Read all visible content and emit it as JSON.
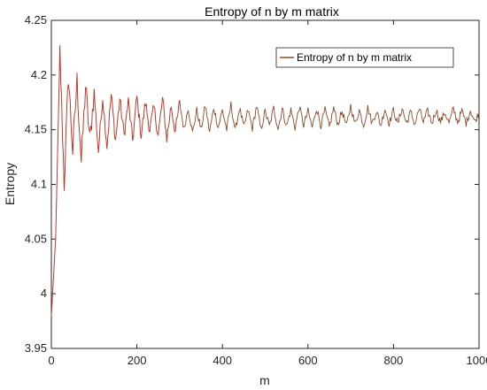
{
  "chart_data": {
    "type": "line",
    "title": "Entropy of n by m matrix",
    "xlabel": "m",
    "ylabel": "Entropy",
    "xlim": [
      0,
      1000
    ],
    "ylim": [
      3.95,
      4.25
    ],
    "xticks": [
      0,
      200,
      400,
      600,
      800,
      1000
    ],
    "xtick_labels": [
      "0",
      "200",
      "400",
      "600",
      "800",
      "1000"
    ],
    "yticks": [
      3.95,
      4.0,
      4.05,
      4.1,
      4.15,
      4.2,
      4.25
    ],
    "ytick_labels": [
      "3.95",
      "4",
      "4.05",
      "4.1",
      "4.15",
      "4.2",
      "4.25"
    ],
    "grid": false,
    "legend_position": "top-right",
    "series": [
      {
        "name": "Entropy of n by m matrix",
        "color": "#8b4a2b",
        "early_color": "#ee2222",
        "values": [
          3.98,
          4.05,
          4.222,
          4.1,
          4.2,
          4.13,
          4.195,
          4.12,
          4.19,
          4.14,
          4.185,
          4.13,
          4.18,
          4.135,
          4.182,
          4.14,
          4.178,
          4.145,
          4.176,
          4.14,
          4.18,
          4.145,
          4.175,
          4.15,
          4.17,
          4.145,
          4.178,
          4.142,
          4.172,
          4.148,
          4.175,
          4.15,
          4.17,
          4.147,
          4.168,
          4.15,
          4.172,
          4.148,
          4.17,
          4.152,
          4.168,
          4.15,
          4.173,
          4.149,
          4.17,
          4.152,
          4.168,
          4.151,
          4.172,
          4.15,
          4.167,
          4.153,
          4.17,
          4.151,
          4.169,
          4.153,
          4.168,
          4.152,
          4.171,
          4.154,
          4.167,
          4.152,
          4.17,
          4.154,
          4.168,
          4.152,
          4.17,
          4.155,
          4.167,
          4.153,
          4.172,
          4.155,
          4.168,
          4.154,
          4.17,
          4.156,
          4.167,
          4.154,
          4.169,
          4.156,
          4.168,
          4.155,
          4.17,
          4.156,
          4.166,
          4.155,
          4.169,
          4.157,
          4.167,
          4.156,
          4.168,
          4.157,
          4.166,
          4.156,
          4.169,
          4.157,
          4.167,
          4.156,
          4.168,
          4.157,
          4.166
        ]
      }
    ]
  }
}
